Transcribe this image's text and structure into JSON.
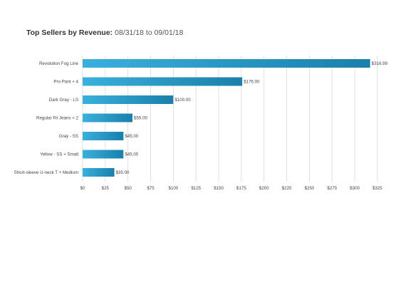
{
  "title": {
    "heading": "Top Sellers by Revenue:",
    "date_range": "08/31/18 to 09/01/18"
  },
  "chart_data": {
    "type": "bar",
    "orientation": "horizontal",
    "title": "Top Sellers by Revenue: 08/31/18 to 09/01/18",
    "categories": [
      "Revolution Fog Line",
      "Pro Pant + 4",
      "Dark Gray - LS",
      "Regular Fit Jeans + 2",
      "Gray - SS",
      "Yellow - SS + Small",
      "Short-sleeve U-neck T + Medium"
    ],
    "values": [
      316.99,
      176.0,
      100.0,
      55.0,
      45.0,
      45.0,
      35.0
    ],
    "value_labels": [
      "$316.99",
      "$176.00",
      "$100.00",
      "$55.00",
      "$45.00",
      "$45.00",
      "$35.00"
    ],
    "xlim": [
      0,
      325
    ],
    "x_ticks": [
      0,
      25,
      50,
      75,
      100,
      125,
      150,
      175,
      200,
      225,
      250,
      275,
      300,
      325
    ],
    "x_tick_labels": [
      "$0",
      "$25",
      "$50",
      "$75",
      "$100",
      "$125",
      "$150",
      "$175",
      "$200",
      "$225",
      "$250",
      "$275",
      "$300",
      "$325"
    ],
    "xlabel": "",
    "ylabel": "",
    "grid": true,
    "legend": "none",
    "colors": {
      "bar_light": "#3ab0dc",
      "bar_dark": "#1a7fab",
      "grid": "#d9d9d9"
    }
  }
}
